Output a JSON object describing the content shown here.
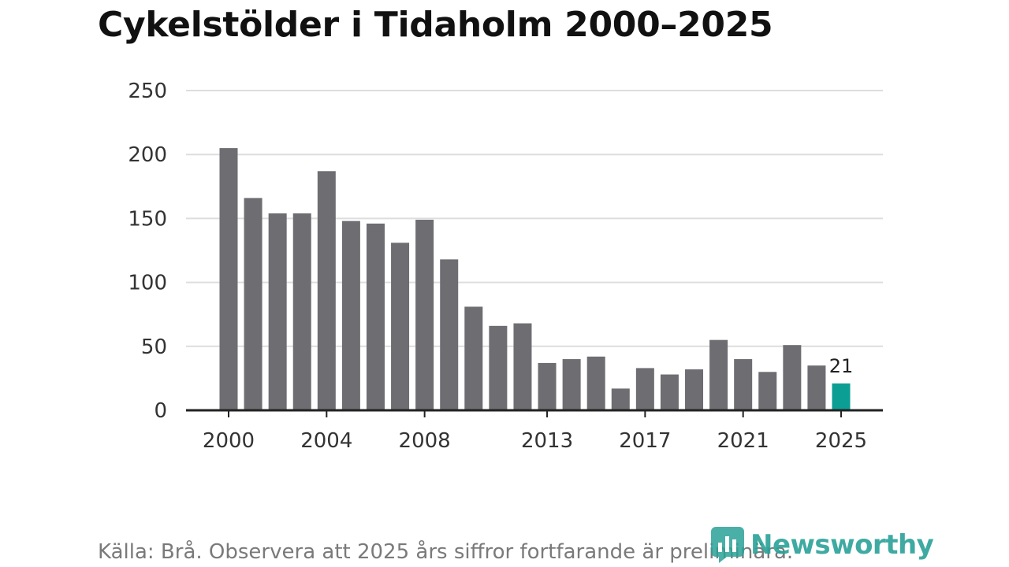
{
  "chart_data": {
    "type": "bar",
    "title": "Cykelstölder i Tidaholm 2000–2025",
    "xlabel": "",
    "ylabel": "",
    "categories": [
      "2000",
      "2001",
      "2002",
      "2003",
      "2004",
      "2005",
      "2006",
      "2007",
      "2008",
      "2009",
      "2010",
      "2011",
      "2012",
      "2013",
      "2014",
      "2015",
      "2016",
      "2017",
      "2018",
      "2019",
      "2020",
      "2021",
      "2022",
      "2023",
      "2024",
      "2025"
    ],
    "values": [
      205,
      166,
      154,
      154,
      187,
      148,
      146,
      131,
      149,
      118,
      81,
      66,
      68,
      37,
      40,
      42,
      17,
      33,
      28,
      32,
      55,
      40,
      30,
      51,
      35,
      21
    ],
    "ylim": [
      0,
      250
    ],
    "yticks": [
      0,
      50,
      100,
      150,
      200,
      250
    ],
    "xtick_labels": [
      "2000",
      "2004",
      "2008",
      "2013",
      "2017",
      "2021",
      "2025"
    ],
    "highlight": {
      "category": "2025",
      "label": "21"
    },
    "colors": {
      "bar": "#6e6d72",
      "highlight": "#0a9e94",
      "grid": "#dddddd",
      "axis": "#222222"
    },
    "grid": true
  },
  "footer": {
    "source": "Källa: Brå. Observera att 2025 års siffror fortfarande är preliminära.",
    "logo_text": "Newsworthy"
  }
}
